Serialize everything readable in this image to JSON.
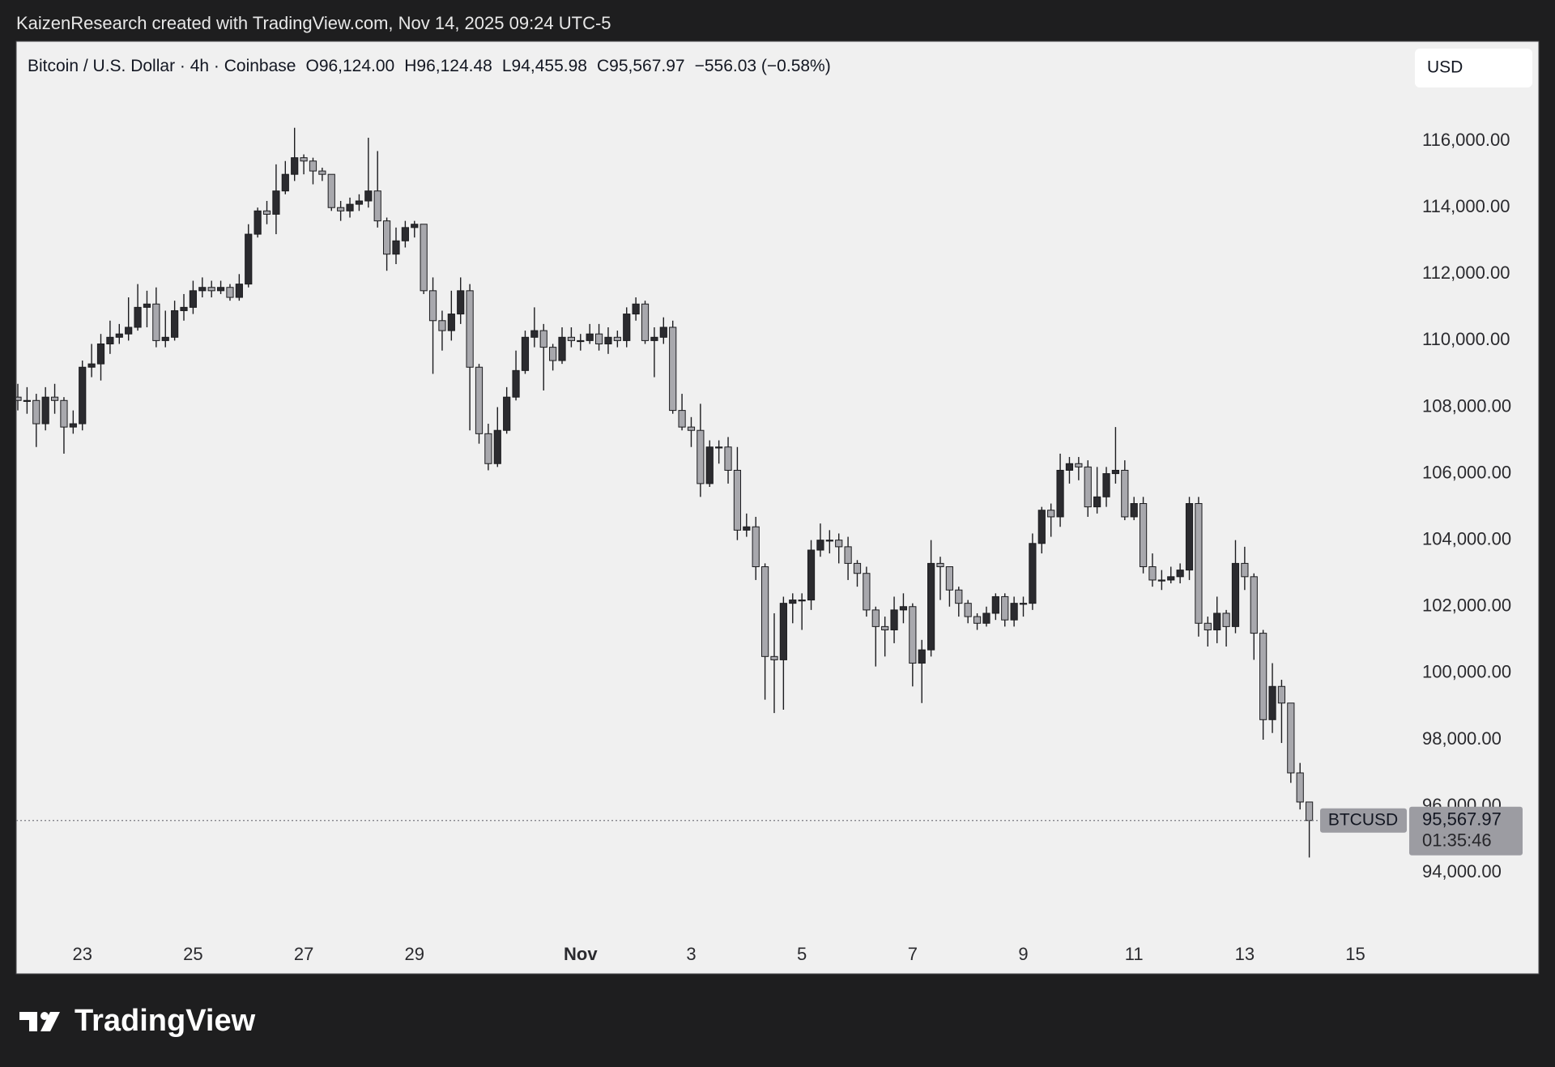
{
  "header": {
    "attribution": "KaizenResearch created with TradingView.com, Nov 14, 2025 09:24 UTC-5"
  },
  "brand": {
    "logo_text": "TradingView"
  },
  "chart_data": {
    "type": "candlestick",
    "symbol": "Bitcoin / U.S. Dollar · 4h · Coinbase",
    "ohlc_labels": [
      {
        "prefix": "O",
        "text": "96,124.00"
      },
      {
        "prefix": "H",
        "text": "96,124.48"
      },
      {
        "prefix": "L",
        "text": "94,455.98"
      },
      {
        "prefix": "C",
        "text": "95,567.97"
      }
    ],
    "change_label": "−556.03 (−0.58%)",
    "currency": "USD",
    "ticker": "BTCUSD",
    "last_price_label": "95,567.97",
    "countdown": "01:35:46",
    "up_color": "#2b2b2f",
    "down_color": "#a8a8ad",
    "wick_color": "#1c1c1f",
    "grid": false,
    "categories": [
      null,
      null,
      null,
      null,
      null,
      null,
      null,
      "23",
      null,
      null,
      null,
      null,
      null,
      null,
      null,
      null,
      null,
      null,
      null,
      "25",
      null,
      null,
      null,
      null,
      null,
      null,
      null,
      null,
      null,
      null,
      null,
      "27",
      null,
      null,
      null,
      null,
      null,
      null,
      null,
      null,
      null,
      null,
      null,
      "29",
      null,
      null,
      null,
      null,
      null,
      null,
      null,
      null,
      null,
      null,
      null,
      null,
      null,
      null,
      null,
      null,
      null,
      "Nov",
      null,
      null,
      null,
      null,
      null,
      null,
      null,
      null,
      null,
      null,
      null,
      "3",
      null,
      null,
      null,
      null,
      null,
      null,
      null,
      null,
      null,
      null,
      null,
      "5",
      null,
      null,
      null,
      null,
      null,
      null,
      null,
      null,
      null,
      null,
      null,
      "7",
      null,
      null,
      null,
      null,
      null,
      null,
      null,
      null,
      null,
      null,
      null,
      "9",
      null,
      null,
      null,
      null,
      null,
      null,
      null,
      null,
      null,
      null,
      null,
      "11",
      null,
      null,
      null,
      null,
      null,
      null,
      null,
      null,
      null,
      null,
      null,
      "13",
      null,
      null,
      null,
      null,
      null,
      null,
      null,
      null,
      null,
      null,
      null,
      "15"
    ],
    "open": [
      108300,
      108200,
      108200,
      107500,
      108300,
      108200,
      107400,
      107500,
      109200,
      109300,
      109900,
      110100,
      110200,
      110400,
      111000,
      111100,
      110000,
      110100,
      110900,
      111000,
      111500,
      111600,
      111500,
      111600,
      111300,
      111700,
      113200,
      113900,
      113800,
      114500,
      115000,
      115500,
      115400,
      115100,
      115000,
      114000,
      113900,
      114100,
      114200,
      114500,
      113600,
      112600,
      113000,
      113400,
      113500,
      111500,
      110600,
      110300,
      110800,
      111500,
      109200,
      107200,
      106300,
      107300,
      108300,
      109100,
      110100,
      110300,
      109800,
      109400,
      110100,
      110000,
      110000,
      110200,
      109900,
      110100,
      110000,
      110800,
      111100,
      110000,
      110100,
      110400,
      107900,
      107400,
      107300,
      105700,
      106800,
      106800,
      106100,
      104300,
      104400,
      103200,
      100500,
      100400,
      102100,
      102200,
      102200,
      103700,
      104000,
      104000,
      103800,
      103300,
      103000,
      101900,
      101400,
      101300,
      101900,
      102000,
      100300,
      100700,
      103300,
      103200,
      102500,
      102100,
      101700,
      101500,
      101800,
      102300,
      101600,
      102100,
      102100,
      103900,
      104900,
      104700,
      106100,
      106300,
      106200,
      105000,
      105300,
      106000,
      106100,
      104700,
      105100,
      103200,
      102800,
      102800,
      102900,
      103100,
      105100,
      101500,
      101300,
      101800,
      101400,
      103300,
      102900,
      101200,
      98600,
      99600,
      99100,
      97000,
      96124,
      null,
      null,
      null,
      null,
      null
    ],
    "high": [
      108700,
      108600,
      108400,
      108600,
      108700,
      108300,
      107900,
      109400,
      109900,
      110200,
      110600,
      110500,
      111300,
      111700,
      111500,
      111600,
      110900,
      111200,
      111400,
      111800,
      111900,
      111800,
      111800,
      111700,
      112000,
      113500,
      114000,
      114200,
      115300,
      115400,
      116400,
      115600,
      115500,
      115200,
      115000,
      114200,
      114300,
      114400,
      116100,
      115700,
      113700,
      113400,
      113600,
      113600,
      113500,
      111900,
      110900,
      111500,
      111900,
      111700,
      109300,
      107500,
      108000,
      108600,
      109700,
      110300,
      111000,
      110500,
      109900,
      110400,
      110400,
      110200,
      110500,
      110500,
      110400,
      110300,
      111000,
      111300,
      111200,
      110400,
      110700,
      110600,
      108400,
      107700,
      108100,
      107000,
      107000,
      107100,
      106800,
      104800,
      104700,
      103300,
      101800,
      102300,
      102400,
      102400,
      104000,
      104500,
      104300,
      104200,
      104100,
      103400,
      103200,
      102000,
      101700,
      102300,
      102400,
      102100,
      101000,
      104000,
      103500,
      103200,
      102600,
      102200,
      101800,
      102000,
      102400,
      102400,
      102300,
      102300,
      104200,
      105000,
      105100,
      106600,
      106500,
      106500,
      106400,
      106200,
      106200,
      107400,
      106400,
      105300,
      105300,
      103600,
      103100,
      103200,
      103300,
      105300,
      105300,
      101700,
      102300,
      101900,
      104000,
      103800,
      103000,
      101300,
      100300,
      99800,
      99100,
      97300,
      96124.48,
      null,
      null,
      null,
      null,
      null
    ],
    "low": [
      107900,
      107800,
      106800,
      107300,
      107800,
      106600,
      107200,
      107300,
      108900,
      108800,
      109600,
      109900,
      110000,
      110300,
      110400,
      109800,
      109800,
      110000,
      110600,
      110800,
      111300,
      111300,
      111400,
      111200,
      111200,
      111600,
      113100,
      113500,
      113200,
      114400,
      114800,
      115000,
      114700,
      114800,
      113900,
      113600,
      113700,
      113900,
      114000,
      113400,
      112100,
      112300,
      112800,
      113100,
      111400,
      109000,
      109700,
      110000,
      110500,
      107300,
      106900,
      106100,
      106200,
      107200,
      108200,
      109000,
      109800,
      108500,
      109100,
      109300,
      109800,
      109700,
      109900,
      109700,
      109600,
      109800,
      109800,
      110600,
      109900,
      108900,
      109900,
      107800,
      107300,
      106800,
      105300,
      105600,
      106300,
      105700,
      104000,
      104100,
      102800,
      99200,
      98800,
      98900,
      101500,
      101300,
      101900,
      103500,
      103600,
      103300,
      102800,
      102600,
      101700,
      100200,
      100500,
      100900,
      101500,
      99600,
      99100,
      100500,
      102200,
      102000,
      101700,
      101500,
      101300,
      101400,
      101600,
      101400,
      101400,
      101700,
      101900,
      103600,
      104100,
      104400,
      105700,
      105800,
      104700,
      104800,
      105000,
      105700,
      104600,
      104600,
      103000,
      102600,
      102500,
      102700,
      102700,
      102800,
      101100,
      100800,
      100900,
      100800,
      101200,
      102500,
      100400,
      98000,
      98200,
      97900,
      96700,
      95900,
      94455.98,
      null,
      null,
      null,
      null,
      null
    ],
    "close": [
      108200,
      108200,
      107500,
      108300,
      108200,
      107400,
      107500,
      109200,
      109300,
      109900,
      110100,
      110200,
      110400,
      111000,
      111100,
      110000,
      110100,
      110900,
      111000,
      111500,
      111600,
      111500,
      111600,
      111300,
      111700,
      113200,
      113900,
      113800,
      114500,
      115000,
      115500,
      115400,
      115100,
      115000,
      114000,
      113900,
      114100,
      114200,
      114500,
      113600,
      112600,
      113000,
      113400,
      113500,
      111500,
      110600,
      110300,
      110800,
      111500,
      109200,
      107200,
      106300,
      107300,
      108300,
      109100,
      110100,
      110300,
      109800,
      109400,
      110100,
      110000,
      110000,
      110200,
      109900,
      110100,
      110000,
      110800,
      111100,
      110000,
      110100,
      110400,
      107900,
      107400,
      107300,
      105700,
      106800,
      106800,
      106100,
      104300,
      104400,
      103200,
      100500,
      100400,
      102100,
      102200,
      102200,
      103700,
      104000,
      104000,
      103800,
      103300,
      103000,
      101900,
      101400,
      101300,
      101900,
      102000,
      100300,
      100700,
      103300,
      103200,
      102500,
      102100,
      101700,
      101500,
      101800,
      102300,
      101600,
      102100,
      102100,
      103900,
      104900,
      104700,
      106100,
      106300,
      106200,
      105000,
      105300,
      106000,
      106100,
      104700,
      105100,
      103200,
      102800,
      102800,
      102900,
      103100,
      105100,
      101500,
      101300,
      101800,
      101400,
      103300,
      102900,
      101200,
      98600,
      99600,
      99100,
      97000,
      96124,
      95567.97,
      null,
      null,
      null,
      null,
      null
    ],
    "ylim": [
      92200,
      119000
    ],
    "yticks": [
      {
        "value": 94000,
        "label": "94,000.00"
      },
      {
        "value": 96000,
        "label": "96,000.00"
      },
      {
        "value": 98000,
        "label": "98,000.00"
      },
      {
        "value": 100000,
        "label": "100,000.00"
      },
      {
        "value": 102000,
        "label": "102,000.00"
      },
      {
        "value": 104000,
        "label": "104,000.00"
      },
      {
        "value": 106000,
        "label": "106,000.00"
      },
      {
        "value": 108000,
        "label": "108,000.00"
      },
      {
        "value": 110000,
        "label": "110,000.00"
      },
      {
        "value": 112000,
        "label": "112,000.00"
      },
      {
        "value": 114000,
        "label": "114,000.00"
      },
      {
        "value": 116000,
        "label": "116,000.00"
      }
    ]
  }
}
